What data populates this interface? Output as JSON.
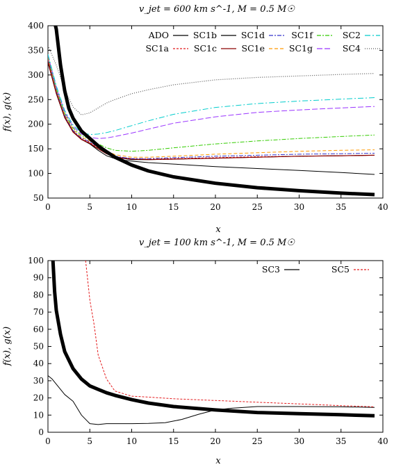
{
  "chart_data": [
    {
      "type": "line",
      "title": "v_jet = 600 km s^-1, M = 0.5 M☉",
      "xlabel": "x",
      "ylabel": "f(x), g(x)",
      "xlim": [
        0,
        40
      ],
      "ylim": [
        50,
        400
      ],
      "xticks": [
        "0",
        "5",
        "10",
        "15",
        "20",
        "25",
        "30",
        "35",
        "40"
      ],
      "yticks": [
        "50",
        "100",
        "150",
        "200",
        "250",
        "300",
        "350",
        "400"
      ],
      "legend_position": "top-right",
      "series": [
        {
          "name": "ADO",
          "color": "#000000",
          "dash": "solid",
          "width": 1,
          "x": [
            0,
            1,
            2,
            3,
            4,
            5,
            6,
            7,
            8,
            9,
            10,
            12,
            15,
            20,
            25,
            30,
            35,
            39
          ],
          "y": [
            330,
            265,
            215,
            185,
            170,
            160,
            147,
            136,
            130,
            127,
            125,
            122,
            119,
            114,
            110,
            106,
            102,
            98
          ]
        },
        {
          "name": "SC1a",
          "color": "#e41a1c",
          "dash": "3,2",
          "width": 1,
          "x": [
            0,
            1,
            2,
            3,
            4,
            5,
            6,
            7,
            8,
            10,
            12,
            15,
            20,
            25,
            30,
            35,
            39
          ],
          "y": [
            330,
            265,
            215,
            185,
            170,
            163,
            152,
            142,
            134,
            130,
            129,
            130,
            132,
            134,
            135,
            136,
            137
          ]
        },
        {
          "name": "SC1b",
          "color": "#000000",
          "dash": "solid",
          "width": 1,
          "x": [
            0,
            1,
            2,
            3,
            4,
            5,
            6,
            7,
            8,
            10,
            12,
            15,
            20,
            25,
            30,
            35,
            39
          ],
          "y": [
            325,
            262,
            213,
            184,
            169,
            160,
            150,
            140,
            133,
            128,
            128,
            129,
            131,
            133,
            135,
            136,
            137
          ]
        },
        {
          "name": "SC1c",
          "color": "#8b0000",
          "dash": "solid",
          "width": 1.2,
          "x": [
            0,
            1,
            2,
            3,
            4,
            5,
            6,
            7,
            8,
            10,
            12,
            15,
            20,
            25,
            30,
            35,
            39
          ],
          "y": [
            326,
            263,
            214,
            184,
            169,
            161,
            150,
            140,
            133,
            129,
            128,
            129,
            131,
            133,
            135,
            136,
            137
          ]
        },
        {
          "name": "SC1d",
          "color": "#3333cc",
          "dash": "6,2,2,2",
          "width": 1,
          "x": [
            0,
            1,
            2,
            3,
            4,
            5,
            6,
            7,
            8,
            10,
            12,
            15,
            20,
            25,
            30,
            35,
            39
          ],
          "y": [
            333,
            268,
            218,
            187,
            172,
            164,
            154,
            143,
            135,
            130,
            130,
            132,
            135,
            137,
            139,
            140,
            141
          ]
        },
        {
          "name": "SC1e",
          "color": "#ff9900",
          "dash": "5,3",
          "width": 1,
          "x": [
            0,
            1,
            2,
            3,
            4,
            5,
            6,
            7,
            8,
            10,
            12,
            15,
            20,
            25,
            30,
            35,
            39
          ],
          "y": [
            335,
            270,
            220,
            189,
            174,
            166,
            156,
            146,
            138,
            133,
            133,
            135,
            139,
            142,
            145,
            147,
            148
          ]
        },
        {
          "name": "SC1f",
          "color": "#33cc00",
          "dash": "6,2,2,2",
          "width": 1,
          "x": [
            0,
            1,
            2,
            3,
            4,
            5,
            6,
            7,
            8,
            10,
            12,
            15,
            20,
            25,
            30,
            35,
            39
          ],
          "y": [
            338,
            272,
            222,
            192,
            177,
            170,
            160,
            152,
            147,
            145,
            147,
            152,
            160,
            166,
            171,
            175,
            178
          ]
        },
        {
          "name": "SC1g",
          "color": "#9933ff",
          "dash": "8,3",
          "width": 1,
          "x": [
            0,
            1,
            2,
            3,
            4,
            5,
            6,
            7,
            8,
            10,
            12,
            15,
            20,
            25,
            30,
            35,
            39
          ],
          "y": [
            340,
            275,
            225,
            195,
            180,
            173,
            171,
            172,
            175,
            182,
            190,
            202,
            215,
            224,
            229,
            233,
            236
          ]
        },
        {
          "name": "SC2",
          "color": "#00cccc",
          "dash": "8,3,2,3",
          "width": 1,
          "x": [
            0,
            1,
            2,
            3,
            4,
            5,
            6,
            7,
            8,
            10,
            12,
            15,
            20,
            25,
            30,
            35,
            39
          ],
          "y": [
            342,
            278,
            228,
            198,
            183,
            179,
            180,
            183,
            187,
            197,
            207,
            220,
            234,
            242,
            247,
            251,
            254
          ]
        },
        {
          "name": "SC4",
          "color": "#555555",
          "dash": "1,2",
          "width": 1.2,
          "x": [
            0,
            1,
            2,
            3,
            4,
            5,
            6,
            7,
            8,
            10,
            12,
            15,
            20,
            25,
            30,
            35,
            39
          ],
          "y": [
            360,
            320,
            270,
            235,
            219,
            223,
            233,
            243,
            250,
            262,
            270,
            280,
            290,
            295,
            298,
            301,
            303
          ]
        },
        {
          "name": "",
          "color": "#000000",
          "dash": "solid",
          "width": 5,
          "x": [
            0.9,
            1,
            1.5,
            2,
            2.5,
            3,
            4,
            5,
            6,
            7,
            8,
            10,
            12,
            15,
            20,
            25,
            30,
            35,
            39
          ],
          "y": [
            400,
            393,
            320,
            268,
            232,
            212,
            186,
            171,
            156,
            144,
            133,
            117,
            105,
            93,
            80,
            71,
            65,
            60,
            57
          ]
        }
      ]
    },
    {
      "type": "line",
      "title": "v_jet = 100 km s^-1, M = 0.5 M☉",
      "xlabel": "x",
      "ylabel": "f(x), g(x)",
      "xlim": [
        0,
        40
      ],
      "ylim": [
        0,
        100
      ],
      "xticks": [
        "0",
        "5",
        "10",
        "15",
        "20",
        "25",
        "30",
        "35",
        "40"
      ],
      "yticks": [
        "0",
        "10",
        "20",
        "30",
        "40",
        "50",
        "60",
        "70",
        "80",
        "90",
        "100"
      ],
      "legend_position": "top-right",
      "series": [
        {
          "name": "SC3",
          "color": "#000000",
          "dash": "solid",
          "width": 1,
          "x": [
            0,
            0.5,
            1,
            2,
            3,
            4,
            5,
            6,
            7,
            8,
            10,
            12,
            14,
            15,
            16,
            18,
            20,
            22,
            25,
            30,
            35,
            39
          ],
          "y": [
            33,
            31,
            28,
            22,
            18,
            10,
            5,
            4.5,
            5,
            5,
            5,
            5.2,
            5.6,
            6.5,
            7.5,
            10.5,
            13,
            14,
            15,
            15,
            14.8,
            14.5
          ]
        },
        {
          "name": "SC5",
          "color": "#e41a1c",
          "dash": "3,2",
          "width": 1,
          "x": [
            4.5,
            5,
            5.5,
            6,
            7,
            8,
            10,
            12,
            15,
            20,
            25,
            30,
            35,
            39
          ],
          "y": [
            100,
            77,
            63,
            45,
            31,
            24,
            21,
            20.5,
            19.5,
            18.5,
            17.5,
            16.5,
            15.5,
            14.8
          ]
        },
        {
          "name": "",
          "color": "#000000",
          "dash": "solid",
          "width": 5,
          "x": [
            0.6,
            0.8,
            1,
            1.5,
            2,
            3,
            4,
            5,
            6,
            7,
            8,
            10,
            12,
            15,
            20,
            25,
            30,
            35,
            39
          ],
          "y": [
            100,
            82,
            71,
            57,
            47,
            37,
            31,
            27,
            25,
            23,
            21.5,
            19,
            17,
            15,
            13,
            11.5,
            10.8,
            10.2,
            9.6
          ]
        }
      ]
    }
  ]
}
